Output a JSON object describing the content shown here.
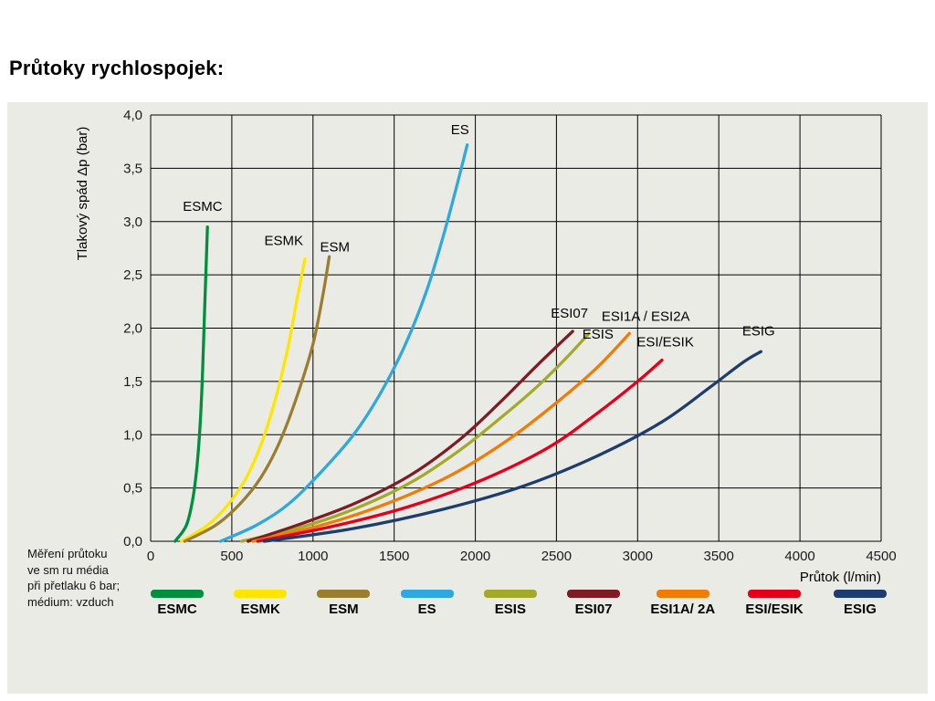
{
  "page": {
    "title": "Průtoky rychlospojek:"
  },
  "note": {
    "lines": [
      "Měření průtoku",
      "ve sm ru média",
      "při přetlaku 6 bar;",
      "médium: vzduch"
    ]
  },
  "chart_data": {
    "type": "line",
    "title": "Průtoky rychlospojek",
    "xlabel": "Průtok (l/min)",
    "ylabel": "Tlakový spád Δp (bar)",
    "xlim": [
      0,
      4500
    ],
    "ylim": [
      0,
      4.0
    ],
    "grid": true,
    "legend_position": "bottom",
    "x_ticks": [
      0,
      500,
      1000,
      1500,
      2000,
      2500,
      3000,
      3500,
      4000,
      4500
    ],
    "x_tick_labels": [
      "0",
      "500",
      "1000",
      "1500",
      "2000",
      "2500",
      "3000",
      "3500",
      "4000",
      "4500"
    ],
    "y_ticks": [
      0,
      0.5,
      1.0,
      1.5,
      2.0,
      2.5,
      3.0,
      3.5,
      4.0
    ],
    "y_tick_labels": [
      "0,0",
      "0,5",
      "1,0",
      "1,5",
      "2,0",
      "2,5",
      "3,0",
      "3,5",
      "4,0"
    ],
    "series": [
      {
        "id": "esmc",
        "name": "ESMC",
        "legend_label": "ESMC",
        "color": "#008f3d",
        "label": {
          "text": "ESMC",
          "x": 320,
          "y": 3.1
        },
        "points": [
          [
            150,
            0
          ],
          [
            220,
            0.15
          ],
          [
            260,
            0.4
          ],
          [
            285,
            0.7
          ],
          [
            305,
            1.1
          ],
          [
            320,
            1.6
          ],
          [
            333,
            2.2
          ],
          [
            342,
            2.6
          ],
          [
            350,
            2.95
          ]
        ]
      },
      {
        "id": "esmk",
        "name": "ESMK",
        "legend_label": "ESMK",
        "color": "#ffe600",
        "label": {
          "text": "ESMK",
          "x": 820,
          "y": 2.78
        },
        "points": [
          [
            190,
            0
          ],
          [
            350,
            0.15
          ],
          [
            480,
            0.35
          ],
          [
            590,
            0.6
          ],
          [
            690,
            0.95
          ],
          [
            780,
            1.4
          ],
          [
            850,
            1.85
          ],
          [
            905,
            2.3
          ],
          [
            950,
            2.65
          ]
        ]
      },
      {
        "id": "esm",
        "name": "ESM",
        "legend_label": "ESM",
        "color": "#9b7d2f",
        "label": {
          "text": "ESM",
          "x": 1135,
          "y": 2.72
        },
        "points": [
          [
            210,
            0
          ],
          [
            400,
            0.15
          ],
          [
            550,
            0.35
          ],
          [
            680,
            0.6
          ],
          [
            800,
            0.95
          ],
          [
            910,
            1.4
          ],
          [
            1000,
            1.85
          ],
          [
            1060,
            2.3
          ],
          [
            1100,
            2.67
          ]
        ]
      },
      {
        "id": "es",
        "name": "ES",
        "legend_label": "ES",
        "color": "#2fa8df",
        "label": {
          "text": "ES",
          "x": 1905,
          "y": 3.82
        },
        "points": [
          [
            430,
            0
          ],
          [
            650,
            0.15
          ],
          [
            850,
            0.35
          ],
          [
            1050,
            0.65
          ],
          [
            1250,
            1.0
          ],
          [
            1420,
            1.4
          ],
          [
            1570,
            1.85
          ],
          [
            1700,
            2.35
          ],
          [
            1800,
            2.85
          ],
          [
            1880,
            3.3
          ],
          [
            1950,
            3.72
          ]
        ]
      },
      {
        "id": "esis",
        "name": "ESIS",
        "legend_label": "ESIS",
        "color": "#a3aa2a",
        "label": {
          "text": "ESIS",
          "x": 2755,
          "y": 1.9
        },
        "points": [
          [
            560,
            0
          ],
          [
            900,
            0.12
          ],
          [
            1250,
            0.3
          ],
          [
            1600,
            0.55
          ],
          [
            1900,
            0.85
          ],
          [
            2150,
            1.15
          ],
          [
            2380,
            1.45
          ],
          [
            2560,
            1.72
          ],
          [
            2700,
            1.95
          ]
        ]
      },
      {
        "id": "esi07",
        "name": "ESI07",
        "legend_label": "ESI07",
        "color": "#7d1c24",
        "label": {
          "text": "ESI07",
          "x": 2580,
          "y": 2.1
        },
        "points": [
          [
            600,
            0
          ],
          [
            900,
            0.15
          ],
          [
            1250,
            0.35
          ],
          [
            1600,
            0.62
          ],
          [
            1900,
            0.95
          ],
          [
            2150,
            1.3
          ],
          [
            2380,
            1.65
          ],
          [
            2600,
            1.97
          ]
        ]
      },
      {
        "id": "esi1a-2a",
        "name": "ESI1A / ESI2A",
        "legend_label": "ESI1A/ 2A",
        "color": "#ef7d05",
        "label": {
          "text": "ESI1A / ESI2A",
          "x": 3050,
          "y": 2.07
        },
        "points": [
          [
            630,
            0
          ],
          [
            1050,
            0.15
          ],
          [
            1450,
            0.35
          ],
          [
            1850,
            0.62
          ],
          [
            2200,
            0.95
          ],
          [
            2500,
            1.3
          ],
          [
            2750,
            1.63
          ],
          [
            2950,
            1.95
          ]
        ]
      },
      {
        "id": "esi-esik",
        "name": "ESI/ESIK",
        "legend_label": "ESI/ESIK",
        "color": "#e3001b",
        "label": {
          "text": "ESI/ESIK",
          "x": 3170,
          "y": 1.83
        },
        "points": [
          [
            660,
            0
          ],
          [
            1150,
            0.15
          ],
          [
            1600,
            0.33
          ],
          [
            2050,
            0.58
          ],
          [
            2450,
            0.88
          ],
          [
            2750,
            1.2
          ],
          [
            3000,
            1.5
          ],
          [
            3150,
            1.7
          ]
        ]
      },
      {
        "id": "esig",
        "name": "ESIG",
        "legend_label": "ESIG",
        "color": "#1d3d6e",
        "label": {
          "text": "ESIG",
          "x": 3745,
          "y": 1.93
        },
        "points": [
          [
            700,
            0
          ],
          [
            1250,
            0.12
          ],
          [
            1800,
            0.3
          ],
          [
            2300,
            0.52
          ],
          [
            2750,
            0.8
          ],
          [
            3150,
            1.12
          ],
          [
            3450,
            1.45
          ],
          [
            3650,
            1.68
          ],
          [
            3760,
            1.78
          ]
        ]
      }
    ]
  }
}
